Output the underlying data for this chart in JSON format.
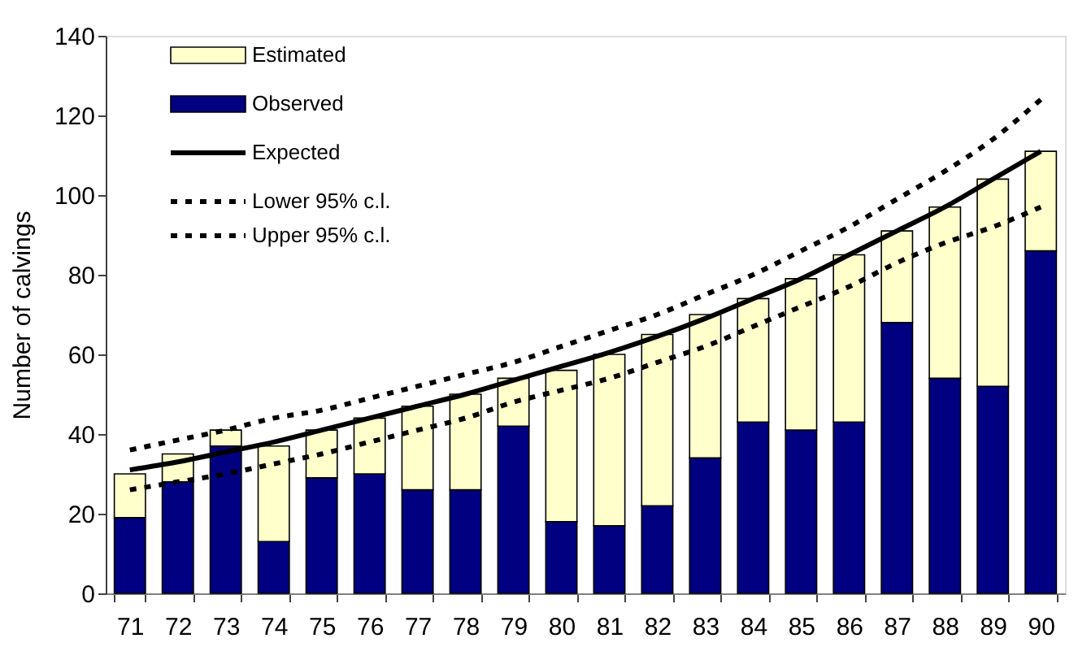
{
  "chart_data": {
    "type": "bar",
    "stacked": true,
    "ylabel": "Number of calvings",
    "categories": [
      "71",
      "72",
      "73",
      "74",
      "75",
      "76",
      "77",
      "78",
      "79",
      "80",
      "81",
      "82",
      "83",
      "84",
      "85",
      "86",
      "87",
      "88",
      "89",
      "90"
    ],
    "ylim": [
      0,
      140
    ],
    "yticks": [
      0,
      20,
      40,
      60,
      80,
      100,
      120,
      140
    ],
    "grid": false,
    "legend": "top left",
    "series": [
      {
        "name": "Observed",
        "type": "bar",
        "color": "#000080",
        "values": [
          19,
          28,
          37,
          13,
          29,
          30,
          26,
          26,
          42,
          18,
          17,
          22,
          34,
          43,
          41,
          43,
          68,
          54,
          52,
          86
        ]
      },
      {
        "name": "Estimated",
        "color": "#ffffcc",
        "values": [
          11,
          7,
          4,
          24,
          12,
          14,
          21,
          24,
          12,
          38,
          43,
          43,
          36,
          31,
          38,
          42,
          23,
          43,
          52,
          25
        ]
      },
      {
        "name": "Expected",
        "type": "line",
        "line_style": "solid",
        "color": "#000000",
        "values": [
          31,
          33,
          35.5,
          38,
          41,
          44,
          47,
          50,
          53.5,
          57,
          60.5,
          64.5,
          69,
          74,
          79,
          85,
          91,
          97,
          104,
          111
        ]
      },
      {
        "name": "Lower 95% c.l.",
        "type": "line",
        "line_style": "dashed",
        "color": "#000000",
        "values": [
          26,
          28,
          30,
          32.5,
          35,
          38,
          41,
          44,
          48,
          51,
          54,
          58,
          62,
          67,
          72,
          77,
          83,
          88,
          92,
          97
        ]
      },
      {
        "name": "Upper 95% c.l.",
        "type": "line",
        "line_style": "dashed",
        "color": "#000000",
        "values": [
          36,
          38.5,
          41,
          44,
          46,
          49,
          52,
          55,
          58,
          62,
          66,
          70,
          75,
          80,
          86,
          92,
          99,
          106,
          114,
          124
        ]
      }
    ]
  }
}
